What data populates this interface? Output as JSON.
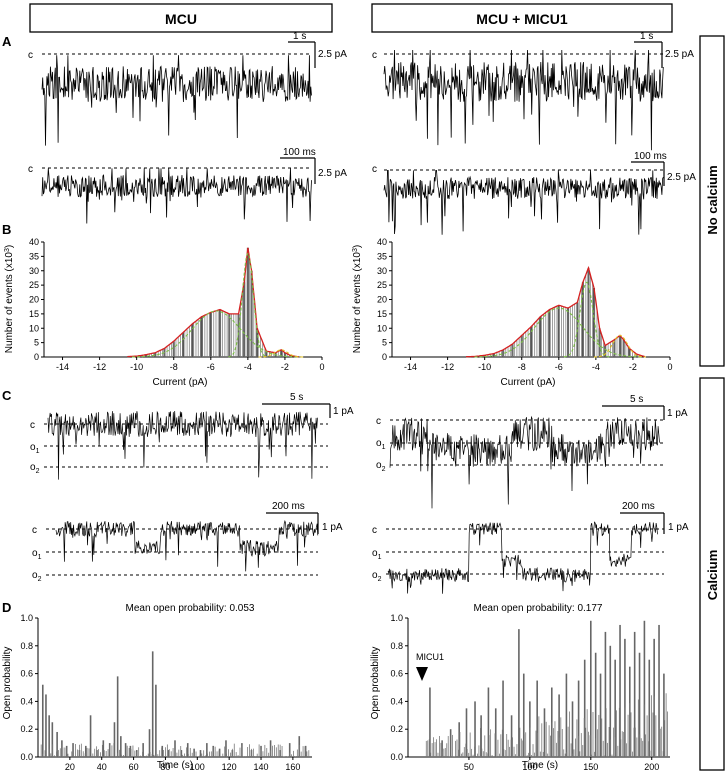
{
  "columns": {
    "left": "MCU",
    "right": "MCU + MICU1"
  },
  "side_labels": {
    "no_calcium": "No calcium",
    "calcium": "Calcium"
  },
  "panel_letters": {
    "A": "A",
    "B": "B",
    "C": "C",
    "D": "D"
  },
  "trace_labels": {
    "c": "c",
    "o1": "o",
    "o1_sub": "1",
    "o2": "o",
    "o2_sub": "2"
  },
  "scale_bars": {
    "a_top_time": "1 s",
    "a_top_amp": "2.5 pA",
    "a_bottom_time": "100 ms",
    "a_bottom_amp": "2.5 pA",
    "c_top_time": "5 s",
    "c_top_amp": "1 pA",
    "c_bottom_time": "200 ms",
    "c_bottom_amp": "1 pA"
  },
  "arrow_label": "MICU1",
  "mean_open_left": "Mean open probability: 0.053",
  "mean_open_right": "Mean open probability: 0.177",
  "chart_data": [
    {
      "type": "bar",
      "panel": "B",
      "condition": "MCU",
      "xlabel": "Current (pA)",
      "ylabel": "Number of events (x10³)",
      "xlim": [
        -15,
        0
      ],
      "ylim": [
        0,
        40
      ],
      "xticks": [
        -14,
        -12,
        -10,
        -8,
        -6,
        -4,
        -2,
        0
      ],
      "yticks": [
        0,
        5,
        10,
        15,
        20,
        25,
        30,
        35,
        40
      ],
      "x": [
        -10.0,
        -9.5,
        -9.0,
        -8.5,
        -8.0,
        -7.5,
        -7.0,
        -6.5,
        -6.0,
        -5.5,
        -5.0,
        -4.5,
        -4.2,
        -4.0,
        -3.8,
        -3.5,
        -3.0,
        -2.5,
        -2.2,
        -2.0,
        -1.7
      ],
      "values": [
        0.3,
        0.8,
        1.5,
        3,
        5.5,
        8.5,
        11.5,
        14,
        15.5,
        16.5,
        15,
        15,
        26,
        38,
        30,
        10,
        2,
        1.5,
        2.5,
        1.5,
        0.5
      ]
    },
    {
      "type": "bar",
      "panel": "B",
      "condition": "MCU + MICU1",
      "xlabel": "Current (pA)",
      "ylabel": "Number of events (x10³)",
      "xlim": [
        -15,
        0
      ],
      "ylim": [
        0,
        40
      ],
      "xticks": [
        -14,
        -12,
        -10,
        -8,
        -6,
        -4,
        -2,
        0
      ],
      "yticks": [
        0,
        5,
        10,
        15,
        20,
        25,
        30,
        35,
        40
      ],
      "x": [
        -10.5,
        -10.0,
        -9.5,
        -9.0,
        -8.5,
        -8.0,
        -7.5,
        -7.0,
        -6.5,
        -6.0,
        -5.5,
        -5.0,
        -4.7,
        -4.4,
        -4.1,
        -3.8,
        -3.5,
        -3.0,
        -2.7,
        -2.5,
        -2.2,
        -1.8
      ],
      "values": [
        0.2,
        0.6,
        1.2,
        2.5,
        4.5,
        7.5,
        10.5,
        14,
        16.5,
        18,
        17,
        19,
        26,
        31,
        24,
        10,
        4,
        6,
        7.5,
        6,
        3,
        1
      ]
    },
    {
      "type": "bar",
      "panel": "D",
      "condition": "MCU",
      "title": "Mean open probability: 0.053",
      "xlabel": "Time (s)",
      "ylabel": "Open probability",
      "xlim": [
        0,
        172
      ],
      "ylim": [
        0,
        1.0
      ],
      "xticks": [
        20,
        40,
        60,
        80,
        100,
        120,
        140,
        160
      ],
      "yticks": [
        0,
        0.2,
        0.4,
        0.6,
        0.8,
        1.0
      ],
      "x": [
        3,
        5,
        7,
        9,
        12,
        15,
        18,
        22,
        26,
        30,
        33,
        37,
        41,
        45,
        48,
        50,
        52,
        55,
        58,
        62,
        66,
        70,
        72,
        74,
        78,
        82,
        86,
        90,
        94,
        98,
        102,
        106,
        110,
        114,
        118,
        122,
        128,
        134,
        140,
        146,
        152,
        158,
        164,
        168
      ],
      "values": [
        0.52,
        0.45,
        0.3,
        0.25,
        0.18,
        0.12,
        0.08,
        0.1,
        0.05,
        0.08,
        0.3,
        0.05,
        0.12,
        0.1,
        0.25,
        0.58,
        0.15,
        0.1,
        0.08,
        0.05,
        0.1,
        0.2,
        0.76,
        0.52,
        0.08,
        0.05,
        0.12,
        0.05,
        0.1,
        0.06,
        0.05,
        0.1,
        0.08,
        0.06,
        0.12,
        0.05,
        0.1,
        0.05,
        0.08,
        0.12,
        0.05,
        0.1,
        0.15,
        0.08
      ]
    },
    {
      "type": "bar",
      "panel": "D",
      "condition": "MCU + MICU1",
      "title": "Mean open probability: 0.177",
      "xlabel": "Time (s)",
      "ylabel": "Open probability",
      "xlim": [
        0,
        215
      ],
      "ylim": [
        0,
        1.0
      ],
      "xticks": [
        50,
        100,
        150,
        200
      ],
      "yticks": [
        0,
        0.2,
        0.4,
        0.6,
        0.8,
        1.0
      ],
      "annotation": {
        "text": "MICU1",
        "x": 8
      },
      "x": [
        18,
        28,
        35,
        42,
        48,
        55,
        60,
        66,
        72,
        78,
        85,
        91,
        95,
        100,
        106,
        112,
        118,
        124,
        130,
        135,
        140,
        145,
        150,
        154,
        158,
        162,
        166,
        170,
        174,
        178,
        182,
        186,
        190,
        194,
        198,
        202,
        206,
        210
      ],
      "values": [
        0.5,
        0.12,
        0.2,
        0.25,
        0.35,
        0.4,
        0.3,
        0.5,
        0.35,
        0.55,
        0.3,
        0.92,
        0.6,
        0.4,
        0.55,
        0.35,
        0.5,
        0.45,
        0.6,
        0.4,
        0.55,
        0.7,
        0.98,
        0.75,
        0.6,
        0.9,
        0.8,
        0.7,
        0.95,
        0.85,
        0.65,
        0.9,
        0.75,
        0.98,
        0.7,
        0.85,
        0.95,
        0.6
      ]
    }
  ]
}
